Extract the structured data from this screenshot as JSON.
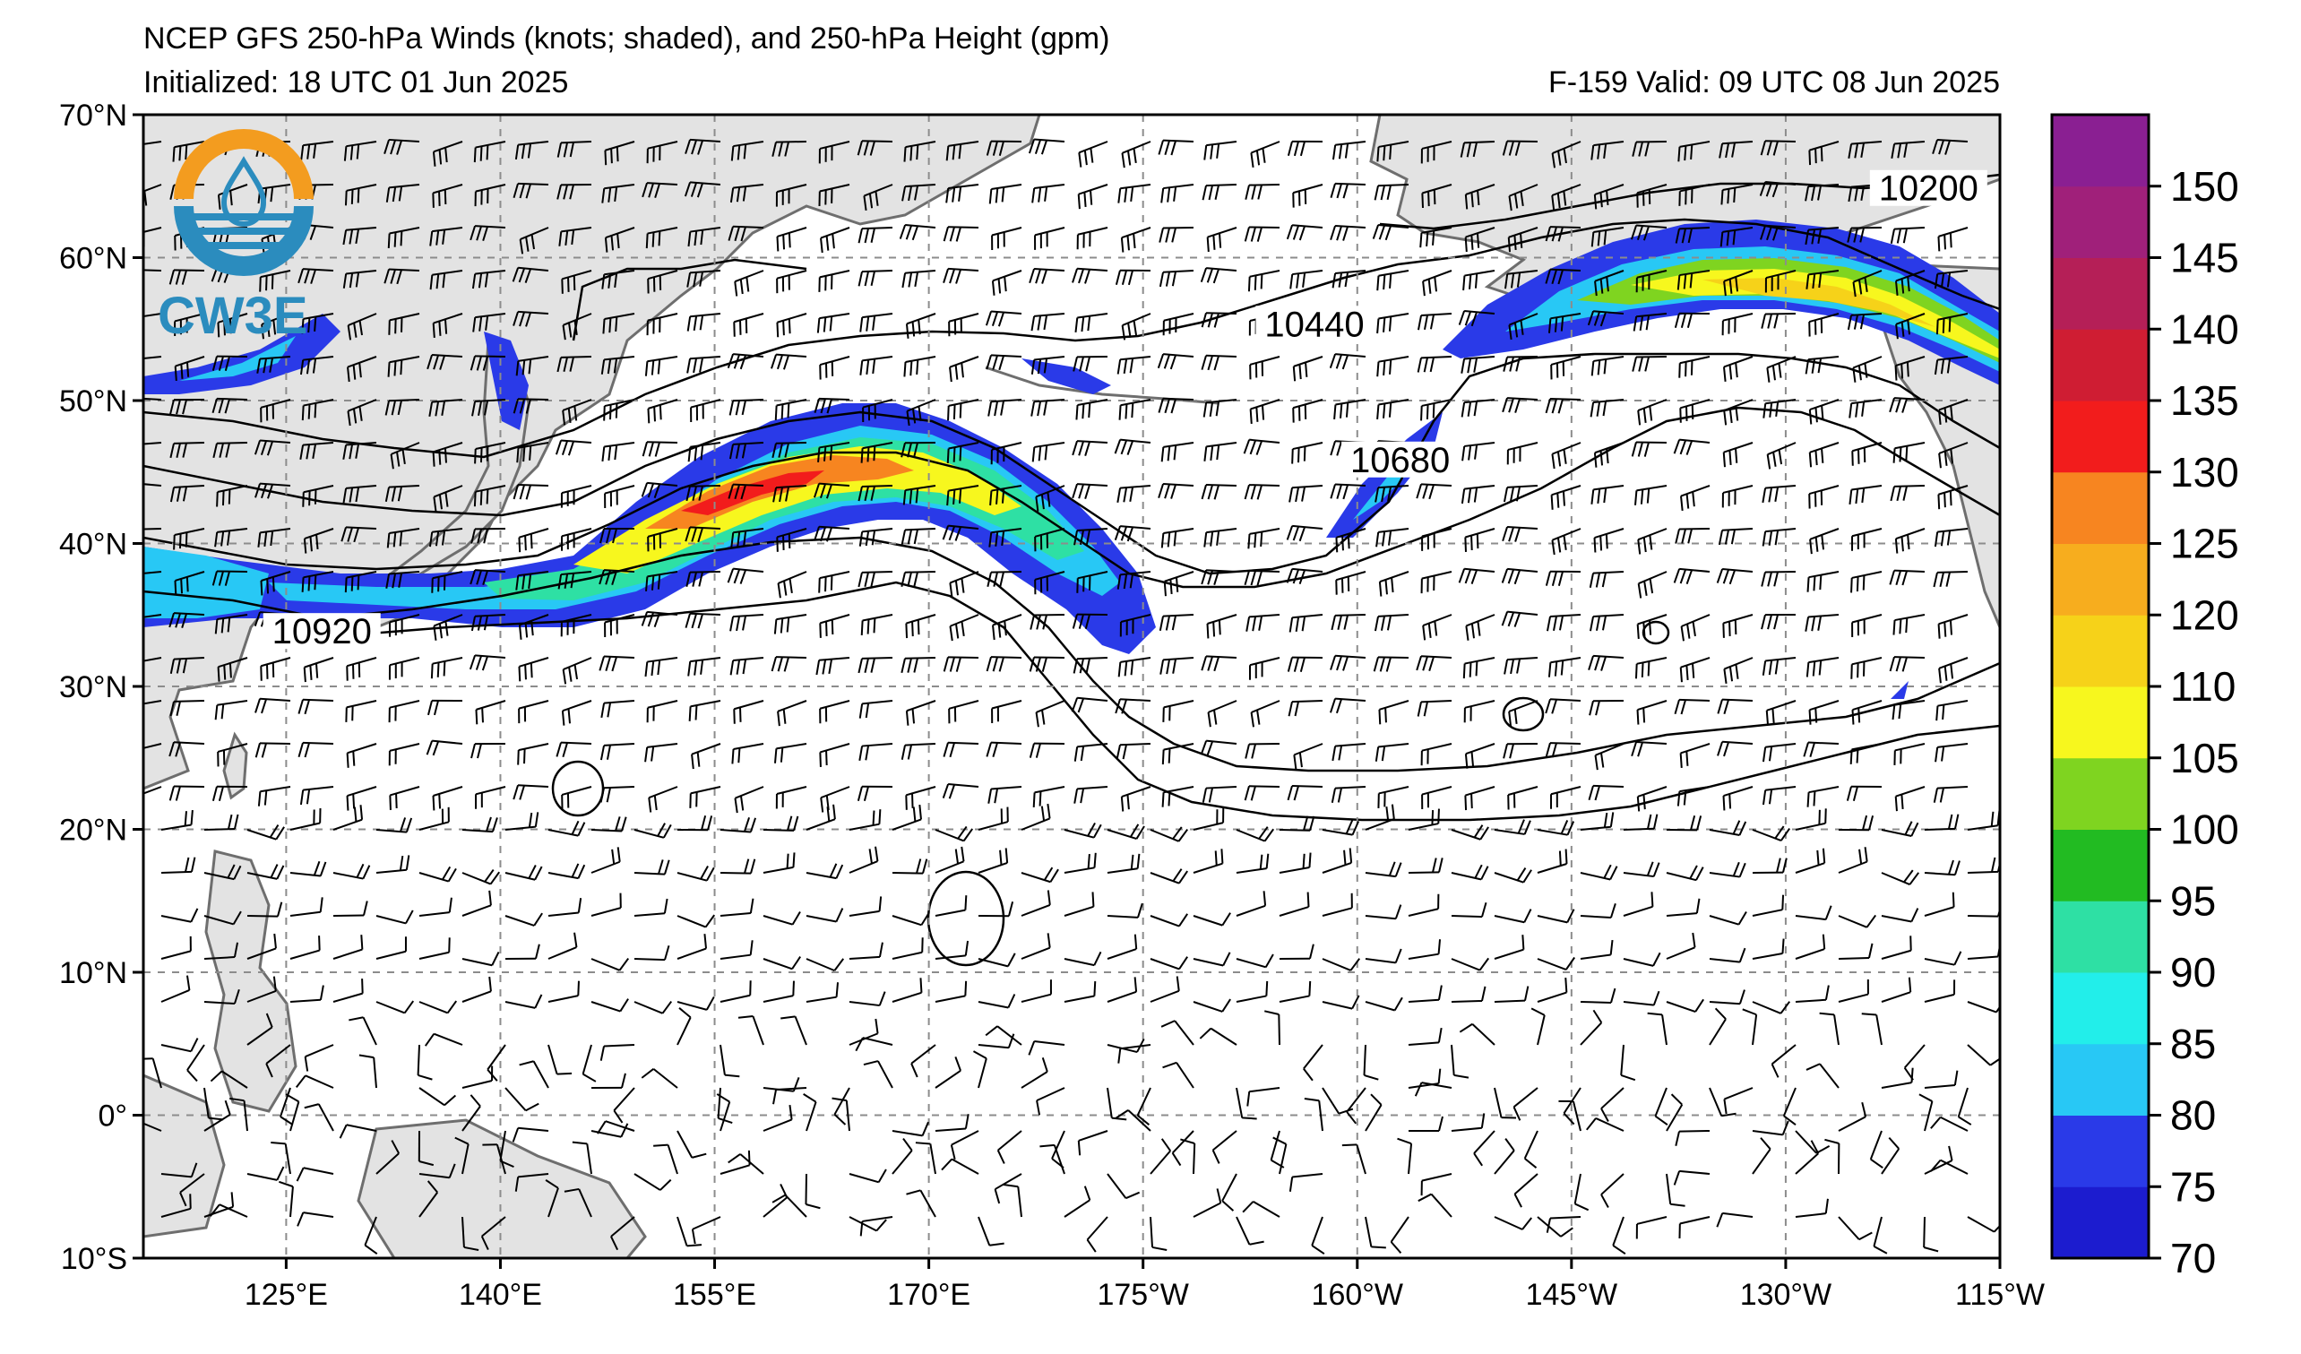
{
  "title": {
    "line1": "NCEP GFS 250-hPa Winds (knots; shaded), and 250-hPa Height (gpm)",
    "line2_left": "Initialized: 18 UTC 01 Jun 2025",
    "line2_right": "F-159  Valid: 09 UTC 08 Jun 2025"
  },
  "logo": {
    "text": "CW3E",
    "ring_top_color": "#f39c1f",
    "ring_bottom_color": "#2b8cbe"
  },
  "map": {
    "projection": "cylindrical",
    "lon_range": [
      115,
      245
    ],
    "lat_range": [
      -10,
      70
    ],
    "lat_ticks": [
      {
        "lat": 70,
        "label": "70°N"
      },
      {
        "lat": 60,
        "label": "60°N"
      },
      {
        "lat": 50,
        "label": "50°N"
      },
      {
        "lat": 40,
        "label": "40°N"
      },
      {
        "lat": 30,
        "label": "30°N"
      },
      {
        "lat": 20,
        "label": "20°N"
      },
      {
        "lat": 10,
        "label": "10°N"
      },
      {
        "lat": 0,
        "label": "0°"
      },
      {
        "lat": -10,
        "label": "10°S"
      }
    ],
    "lon_ticks": [
      {
        "lon": 125,
        "label": "125°E"
      },
      {
        "lon": 140,
        "label": "140°E"
      },
      {
        "lon": 155,
        "label": "155°E"
      },
      {
        "lon": 170,
        "label": "170°E"
      },
      {
        "lon": 185,
        "label": "175°W"
      },
      {
        "lon": 200,
        "label": "160°W"
      },
      {
        "lon": 215,
        "label": "145°W"
      },
      {
        "lon": 230,
        "label": "130°W"
      },
      {
        "lon": 245,
        "label": "115°W"
      }
    ],
    "grid_lines": "dashed gray",
    "land_color": "#e3e3e3",
    "coast_color": "#6e6e6e"
  },
  "height_contour_labels": [
    {
      "label": "10200",
      "lon": 240,
      "lat": 64.5
    },
    {
      "label": "10440",
      "lon": 197,
      "lat": 55
    },
    {
      "label": "10680",
      "lon": 203,
      "lat": 45.5
    },
    {
      "label": "10920",
      "lon": 127.5,
      "lat": 33.5
    }
  ],
  "colorbar": {
    "levels": [
      {
        "value": 70,
        "color": "#1c1ccf"
      },
      {
        "value": 75,
        "color": "#2a3ae8"
      },
      {
        "value": 80,
        "color": "#28c8f5"
      },
      {
        "value": 85,
        "color": "#22eeea"
      },
      {
        "value": 90,
        "color": "#2ee0a4"
      },
      {
        "value": 95,
        "color": "#22bb22"
      },
      {
        "value": 100,
        "color": "#7fd420"
      },
      {
        "value": 105,
        "color": "#f7f71e"
      },
      {
        "value": 110,
        "color": "#f6d219"
      },
      {
        "value": 120,
        "color": "#f7ad1e"
      },
      {
        "value": 125,
        "color": "#f78520"
      },
      {
        "value": 130,
        "color": "#f21c1c"
      },
      {
        "value": 135,
        "color": "#cf1d33"
      },
      {
        "value": 140,
        "color": "#b51f57"
      },
      {
        "value": 145,
        "color": "#a0207a"
      },
      {
        "value": 150,
        "color": "#8a1f92"
      }
    ],
    "tick_labels": [
      "70",
      "75",
      "80",
      "85",
      "90",
      "95",
      "100",
      "105",
      "110",
      "120",
      "125",
      "130",
      "135",
      "140",
      "145",
      "150"
    ]
  }
}
